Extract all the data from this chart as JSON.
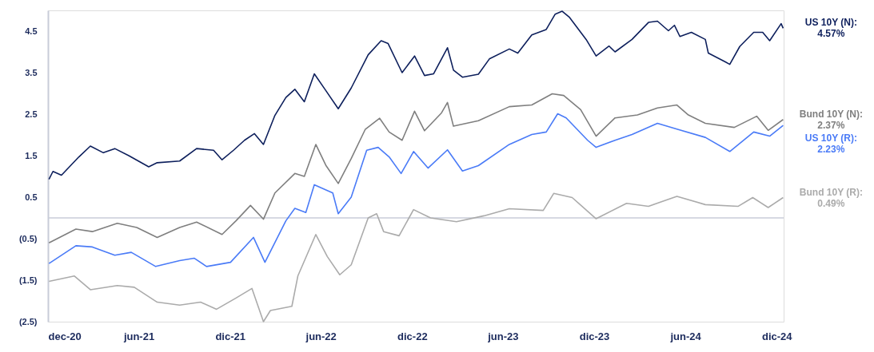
{
  "chart_data": {
    "type": "line",
    "line_style": "solid",
    "xlim": [
      "2020-12-01",
      "2024-12-15"
    ],
    "xticks": [
      {
        "value": "2020-12-01",
        "label": "dec-20"
      },
      {
        "value": "2021-06-01",
        "label": "jun-21"
      },
      {
        "value": "2021-12-01",
        "label": "dic-21"
      },
      {
        "value": "2022-06-01",
        "label": "jun-22"
      },
      {
        "value": "2022-12-01",
        "label": "dic-22"
      },
      {
        "value": "2023-06-01",
        "label": "jun-23"
      },
      {
        "value": "2023-12-01",
        "label": "dic-23"
      },
      {
        "value": "2024-06-01",
        "label": "jun-24"
      },
      {
        "value": "2024-12-01",
        "label": "dic-24"
      }
    ],
    "ylim": [
      -2.5,
      5.0
    ],
    "yticks": [
      {
        "value": -2.5,
        "label": "(2.5)"
      },
      {
        "value": -1.5,
        "label": "(1.5)"
      },
      {
        "value": -0.5,
        "label": "(0.5)"
      },
      0.5,
      1.5,
      2.5,
      3.5,
      4.5
    ],
    "ref_lines": [
      {
        "axis": "y",
        "value": 0,
        "label": null,
        "color": "#c8ccd8"
      }
    ],
    "series": [
      {
        "name": "US 10Y (N):",
        "color": "#0d1f5c",
        "x": [
          "2020-12-03",
          "2020-12-11",
          "2020-12-28",
          "2021-02-01",
          "2021-02-24",
          "2021-03-22",
          "2021-04-14",
          "2021-05-12",
          "2021-06-21",
          "2021-07-08",
          "2021-08-22",
          "2021-09-25",
          "2021-10-29",
          "2021-11-15",
          "2021-12-08",
          "2021-12-30",
          "2022-01-19",
          "2022-02-06",
          "2022-03-01",
          "2022-03-23",
          "2022-04-10",
          "2022-04-29",
          "2022-05-19",
          "2022-06-11",
          "2022-07-06",
          "2022-08-01",
          "2022-09-04",
          "2022-09-30",
          "2022-10-14",
          "2022-11-11",
          "2022-12-06",
          "2022-12-26",
          "2023-01-13",
          "2023-02-10",
          "2023-02-22",
          "2023-03-12",
          "2023-04-13",
          "2023-05-05",
          "2023-06-14",
          "2023-07-01",
          "2023-07-29",
          "2023-08-27",
          "2023-09-14",
          "2023-09-28",
          "2023-10-12",
          "2023-11-15",
          "2023-12-05",
          "2023-12-31",
          "2024-01-12",
          "2024-02-15",
          "2024-03-19",
          "2024-04-06",
          "2024-04-28",
          "2024-05-10",
          "2024-05-21",
          "2024-06-13",
          "2024-07-11",
          "2024-07-17",
          "2024-08-20",
          "2024-08-29",
          "2024-09-18",
          "2024-10-16",
          "2024-11-03",
          "2024-11-17",
          "2024-12-10",
          "2024-12-14"
        ],
        "values": [
          0.93,
          1.12,
          1.03,
          1.47,
          1.73,
          1.57,
          1.67,
          1.5,
          1.23,
          1.33,
          1.37,
          1.67,
          1.63,
          1.4,
          1.63,
          1.87,
          2.03,
          1.77,
          2.47,
          2.9,
          3.1,
          2.8,
          3.47,
          3.07,
          2.63,
          3.13,
          3.93,
          4.27,
          4.2,
          3.5,
          3.9,
          3.43,
          3.47,
          4.1,
          3.56,
          3.39,
          3.46,
          3.83,
          4.07,
          3.97,
          4.41,
          4.54,
          4.91,
          4.98,
          4.84,
          4.3,
          3.9,
          4.14,
          4.0,
          4.3,
          4.71,
          4.74,
          4.51,
          4.64,
          4.37,
          4.47,
          4.3,
          3.97,
          3.76,
          3.7,
          4.13,
          4.47,
          4.47,
          4.27,
          4.68,
          4.57
        ]
      },
      {
        "name": "Bund 10Y (N):",
        "color": "#7f7f7f",
        "x": [
          "2020-12-03",
          "2021-01-26",
          "2021-02-28",
          "2021-04-19",
          "2021-05-28",
          "2021-07-08",
          "2021-08-22",
          "2021-09-25",
          "2021-11-15",
          "2021-12-13",
          "2022-01-11",
          "2022-02-06",
          "2022-03-01",
          "2022-04-10",
          "2022-04-29",
          "2022-05-22",
          "2022-06-11",
          "2022-07-06",
          "2022-08-01",
          "2022-08-29",
          "2022-09-27",
          "2022-10-16",
          "2022-11-11",
          "2022-12-06",
          "2022-12-26",
          "2023-01-29",
          "2023-02-10",
          "2023-02-22",
          "2023-04-13",
          "2023-06-14",
          "2023-07-29",
          "2023-09-08",
          "2023-10-01",
          "2023-11-04",
          "2023-12-05",
          "2024-01-12",
          "2024-02-26",
          "2024-04-06",
          "2024-05-15",
          "2024-06-07",
          "2024-07-11",
          "2024-09-07",
          "2024-10-22",
          "2024-11-14",
          "2024-12-14"
        ],
        "values": [
          -0.6,
          -0.27,
          -0.33,
          -0.13,
          -0.23,
          -0.47,
          -0.23,
          -0.1,
          -0.4,
          -0.07,
          0.3,
          -0.03,
          0.6,
          1.07,
          1.0,
          1.77,
          1.27,
          0.83,
          1.43,
          2.13,
          2.4,
          2.07,
          1.87,
          2.57,
          2.1,
          2.53,
          2.78,
          2.21,
          2.34,
          2.68,
          2.72,
          2.99,
          2.95,
          2.61,
          1.97,
          2.41,
          2.48,
          2.65,
          2.72,
          2.48,
          2.28,
          2.18,
          2.45,
          2.11,
          2.37
        ]
      },
      {
        "name": "US 10Y (R):",
        "color": "#4a7bf7",
        "x": [
          "2020-12-03",
          "2021-01-26",
          "2021-02-28",
          "2021-04-14",
          "2021-05-17",
          "2021-07-05",
          "2021-08-22",
          "2021-09-20",
          "2021-10-15",
          "2021-12-02",
          "2022-01-17",
          "2022-02-09",
          "2022-03-23",
          "2022-04-10",
          "2022-05-02",
          "2022-05-19",
          "2022-06-25",
          "2022-07-06",
          "2022-08-01",
          "2022-09-01",
          "2022-09-24",
          "2022-10-16",
          "2022-11-09",
          "2022-12-04",
          "2023-01-02",
          "2023-02-10",
          "2023-03-12",
          "2023-04-13",
          "2023-06-14",
          "2023-07-29",
          "2023-08-27",
          "2023-09-19",
          "2023-10-06",
          "2023-11-18",
          "2023-12-05",
          "2024-01-12",
          "2024-02-15",
          "2024-04-06",
          "2024-05-15",
          "2024-07-11",
          "2024-08-29",
          "2024-10-16",
          "2024-11-17",
          "2024-12-14"
        ],
        "values": [
          -1.1,
          -0.67,
          -0.7,
          -0.9,
          -0.83,
          -1.17,
          -1.03,
          -0.97,
          -1.17,
          -1.07,
          -0.47,
          -1.07,
          -0.07,
          0.23,
          0.13,
          0.8,
          0.6,
          0.1,
          0.5,
          1.63,
          1.7,
          1.47,
          1.07,
          1.6,
          1.2,
          1.64,
          1.13,
          1.26,
          1.77,
          2.01,
          2.07,
          2.51,
          2.41,
          1.87,
          1.7,
          1.87,
          2.01,
          2.28,
          2.14,
          1.94,
          1.6,
          2.07,
          1.97,
          2.23
        ]
      },
      {
        "name": "Bund 10Y (R):",
        "color": "#ababab",
        "x": [
          "2020-12-03",
          "2021-01-23",
          "2021-02-24",
          "2021-04-19",
          "2021-05-23",
          "2021-07-08",
          "2021-08-22",
          "2021-10-03",
          "2021-11-04",
          "2021-12-13",
          "2022-01-14",
          "2022-02-06",
          "2022-02-20",
          "2022-04-04",
          "2022-04-16",
          "2022-05-22",
          "2022-06-14",
          "2022-07-09",
          "2022-08-01",
          "2022-09-04",
          "2022-09-21",
          "2022-10-05",
          "2022-11-05",
          "2022-12-04",
          "2023-01-07",
          "2023-02-28",
          "2023-04-24",
          "2023-06-14",
          "2023-08-21",
          "2023-09-11",
          "2023-10-18",
          "2023-12-05",
          "2024-02-04",
          "2024-03-19",
          "2024-05-15",
          "2024-07-11",
          "2024-09-15",
          "2024-10-14",
          "2024-11-14",
          "2024-12-14"
        ],
        "values": [
          -1.53,
          -1.4,
          -1.73,
          -1.63,
          -1.67,
          -2.03,
          -2.1,
          -2.03,
          -2.2,
          -1.93,
          -1.7,
          -2.5,
          -2.23,
          -2.13,
          -1.4,
          -0.4,
          -0.93,
          -1.37,
          -1.13,
          0.0,
          0.1,
          -0.33,
          -0.43,
          0.2,
          0.0,
          -0.09,
          0.05,
          0.22,
          0.18,
          0.59,
          0.49,
          -0.02,
          0.35,
          0.28,
          0.52,
          0.32,
          0.28,
          0.49,
          0.25,
          0.49
        ]
      }
    ],
    "annotations": [
      "4.57%",
      "2.37%",
      "2.23%",
      "0.49%"
    ]
  }
}
